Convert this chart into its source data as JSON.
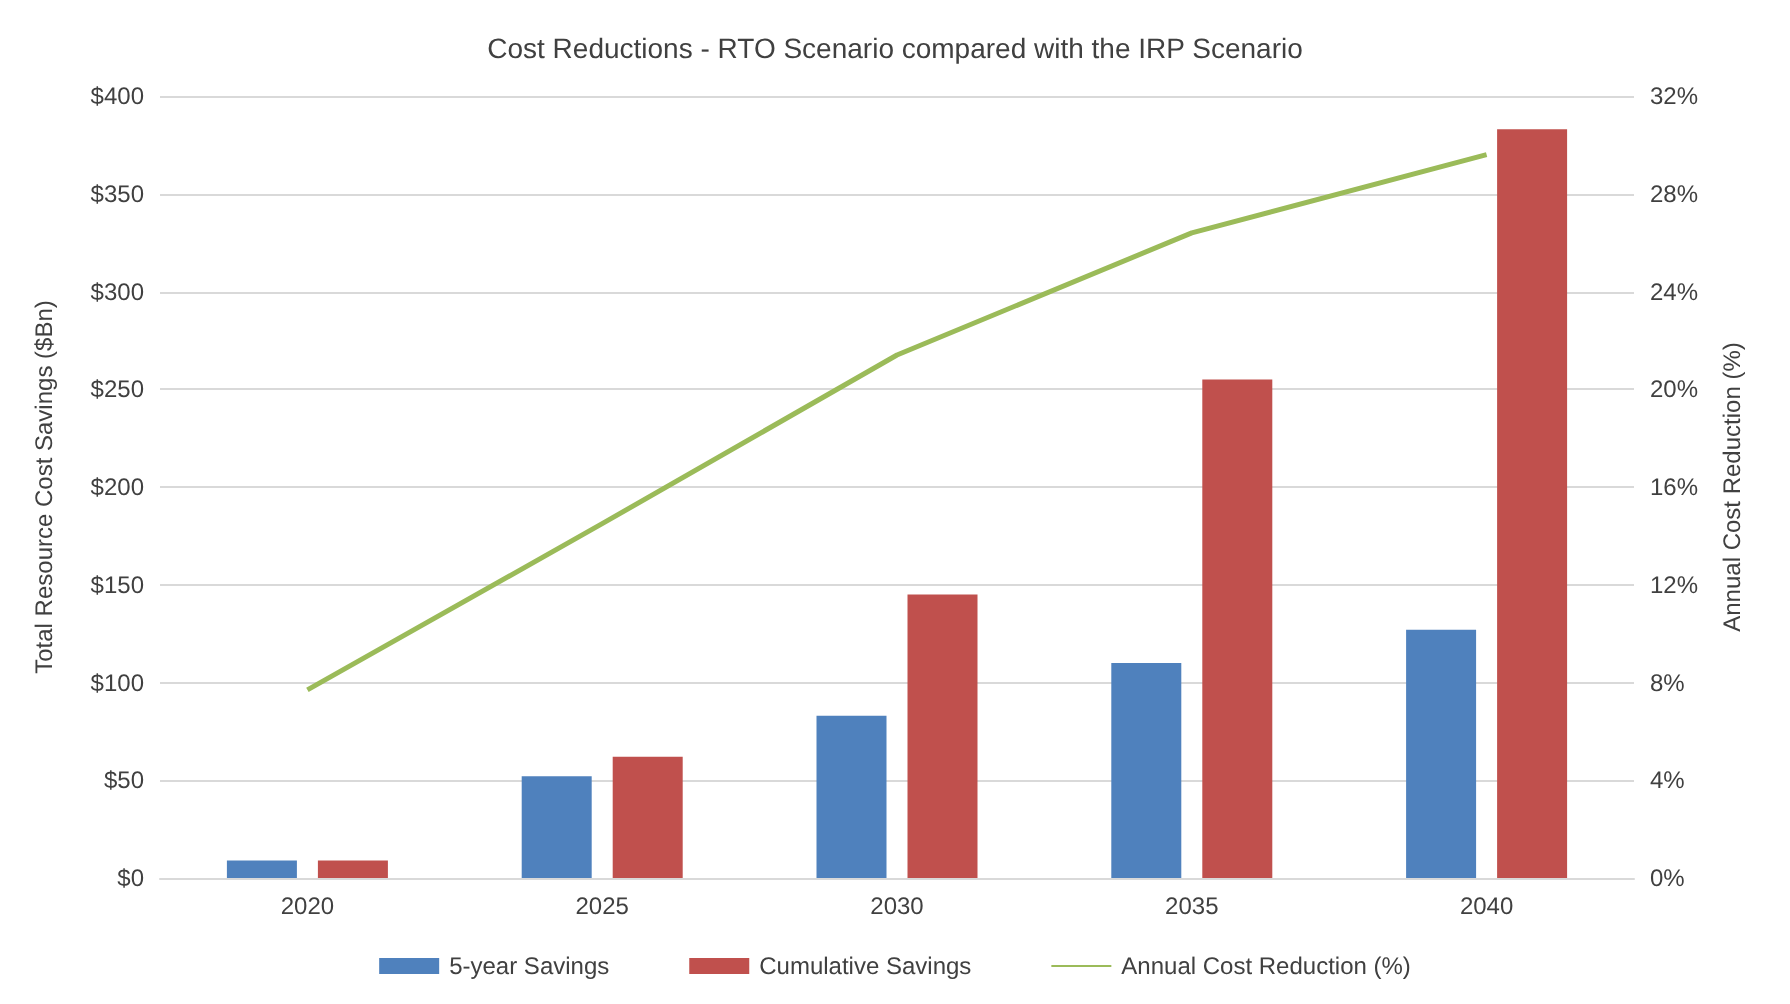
{
  "chart_data": {
    "type": "bar",
    "title": "Cost Reductions - RTO Scenario compared with the IRP Scenario",
    "ylabel": "Total Resource Cost Savings ($Bn)",
    "y2label": "Annual Cost Reduction (%)",
    "categories": [
      "2020",
      "2025",
      "2030",
      "2035",
      "2040"
    ],
    "series": [
      {
        "name": "5-year Savings",
        "color": "#4f81bd",
        "values": [
          9,
          52,
          83,
          110,
          127
        ]
      },
      {
        "name": "Cumulative Savings",
        "color": "#c0504d",
        "values": [
          9,
          62,
          145,
          255,
          383
        ]
      },
      {
        "name": "Annual Cost Reduction (%)",
        "type": "line",
        "axis": "y2",
        "color": "#9bbb59",
        "values": [
          7.7,
          14.5,
          21.4,
          26.4,
          29.6
        ]
      }
    ],
    "ylim": [
      0,
      400
    ],
    "yticks": [
      {
        "value": 0,
        "label": "$0"
      },
      {
        "value": 50,
        "label": "$50"
      },
      {
        "value": 100,
        "label": "$100"
      },
      {
        "value": 150,
        "label": "$150"
      },
      {
        "value": 200,
        "label": "$200"
      },
      {
        "value": 250,
        "label": "$250"
      },
      {
        "value": 300,
        "label": "$300"
      },
      {
        "value": 350,
        "label": "$350"
      },
      {
        "value": 400,
        "label": "$400"
      }
    ],
    "y2lim": [
      0,
      32
    ],
    "y2ticks": [
      {
        "value": 0,
        "label": "0%"
      },
      {
        "value": 4,
        "label": "4%"
      },
      {
        "value": 8,
        "label": "8%"
      },
      {
        "value": 12,
        "label": "12%"
      },
      {
        "value": 16,
        "label": "16%"
      },
      {
        "value": 20,
        "label": "20%"
      },
      {
        "value": 24,
        "label": "24%"
      },
      {
        "value": 28,
        "label": "28%"
      },
      {
        "value": 32,
        "label": "32%"
      }
    ],
    "grid": "y",
    "legend": "bottom",
    "marker": "none"
  }
}
